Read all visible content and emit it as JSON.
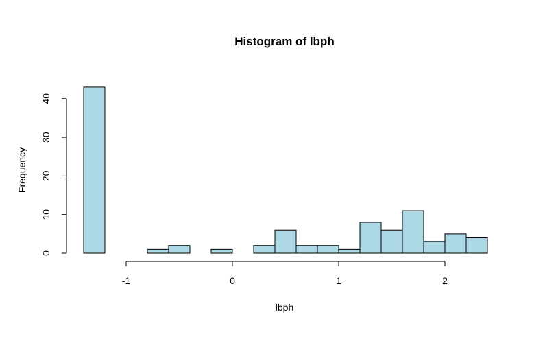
{
  "chart_data": {
    "type": "bar",
    "title": "Histogram of lbph",
    "xlabel": "lbph",
    "ylabel": "Frequency",
    "bar_color": "#add8e6",
    "bin_edges": [
      -1.4,
      -1.2,
      -1.0,
      -0.8,
      -0.6,
      -0.4,
      -0.2,
      0.0,
      0.2,
      0.4,
      0.6,
      0.8,
      1.0,
      1.2,
      1.4,
      1.6,
      1.8,
      2.0,
      2.2,
      2.4
    ],
    "values": [
      43,
      0,
      0,
      1,
      2,
      0,
      1,
      0,
      2,
      6,
      2,
      2,
      1,
      8,
      6,
      11,
      3,
      5,
      4
    ],
    "xlim": [
      -1.4,
      2.4
    ],
    "ylim": [
      0,
      43
    ],
    "x_ticks": [
      -1,
      0,
      1,
      2
    ],
    "x_tick_labels": [
      "-1",
      "0",
      "1",
      "2"
    ],
    "y_ticks": [
      0,
      10,
      20,
      30,
      40
    ],
    "y_tick_labels": [
      "0",
      "10",
      "20",
      "30",
      "40"
    ],
    "grid": false,
    "legend": "none"
  }
}
